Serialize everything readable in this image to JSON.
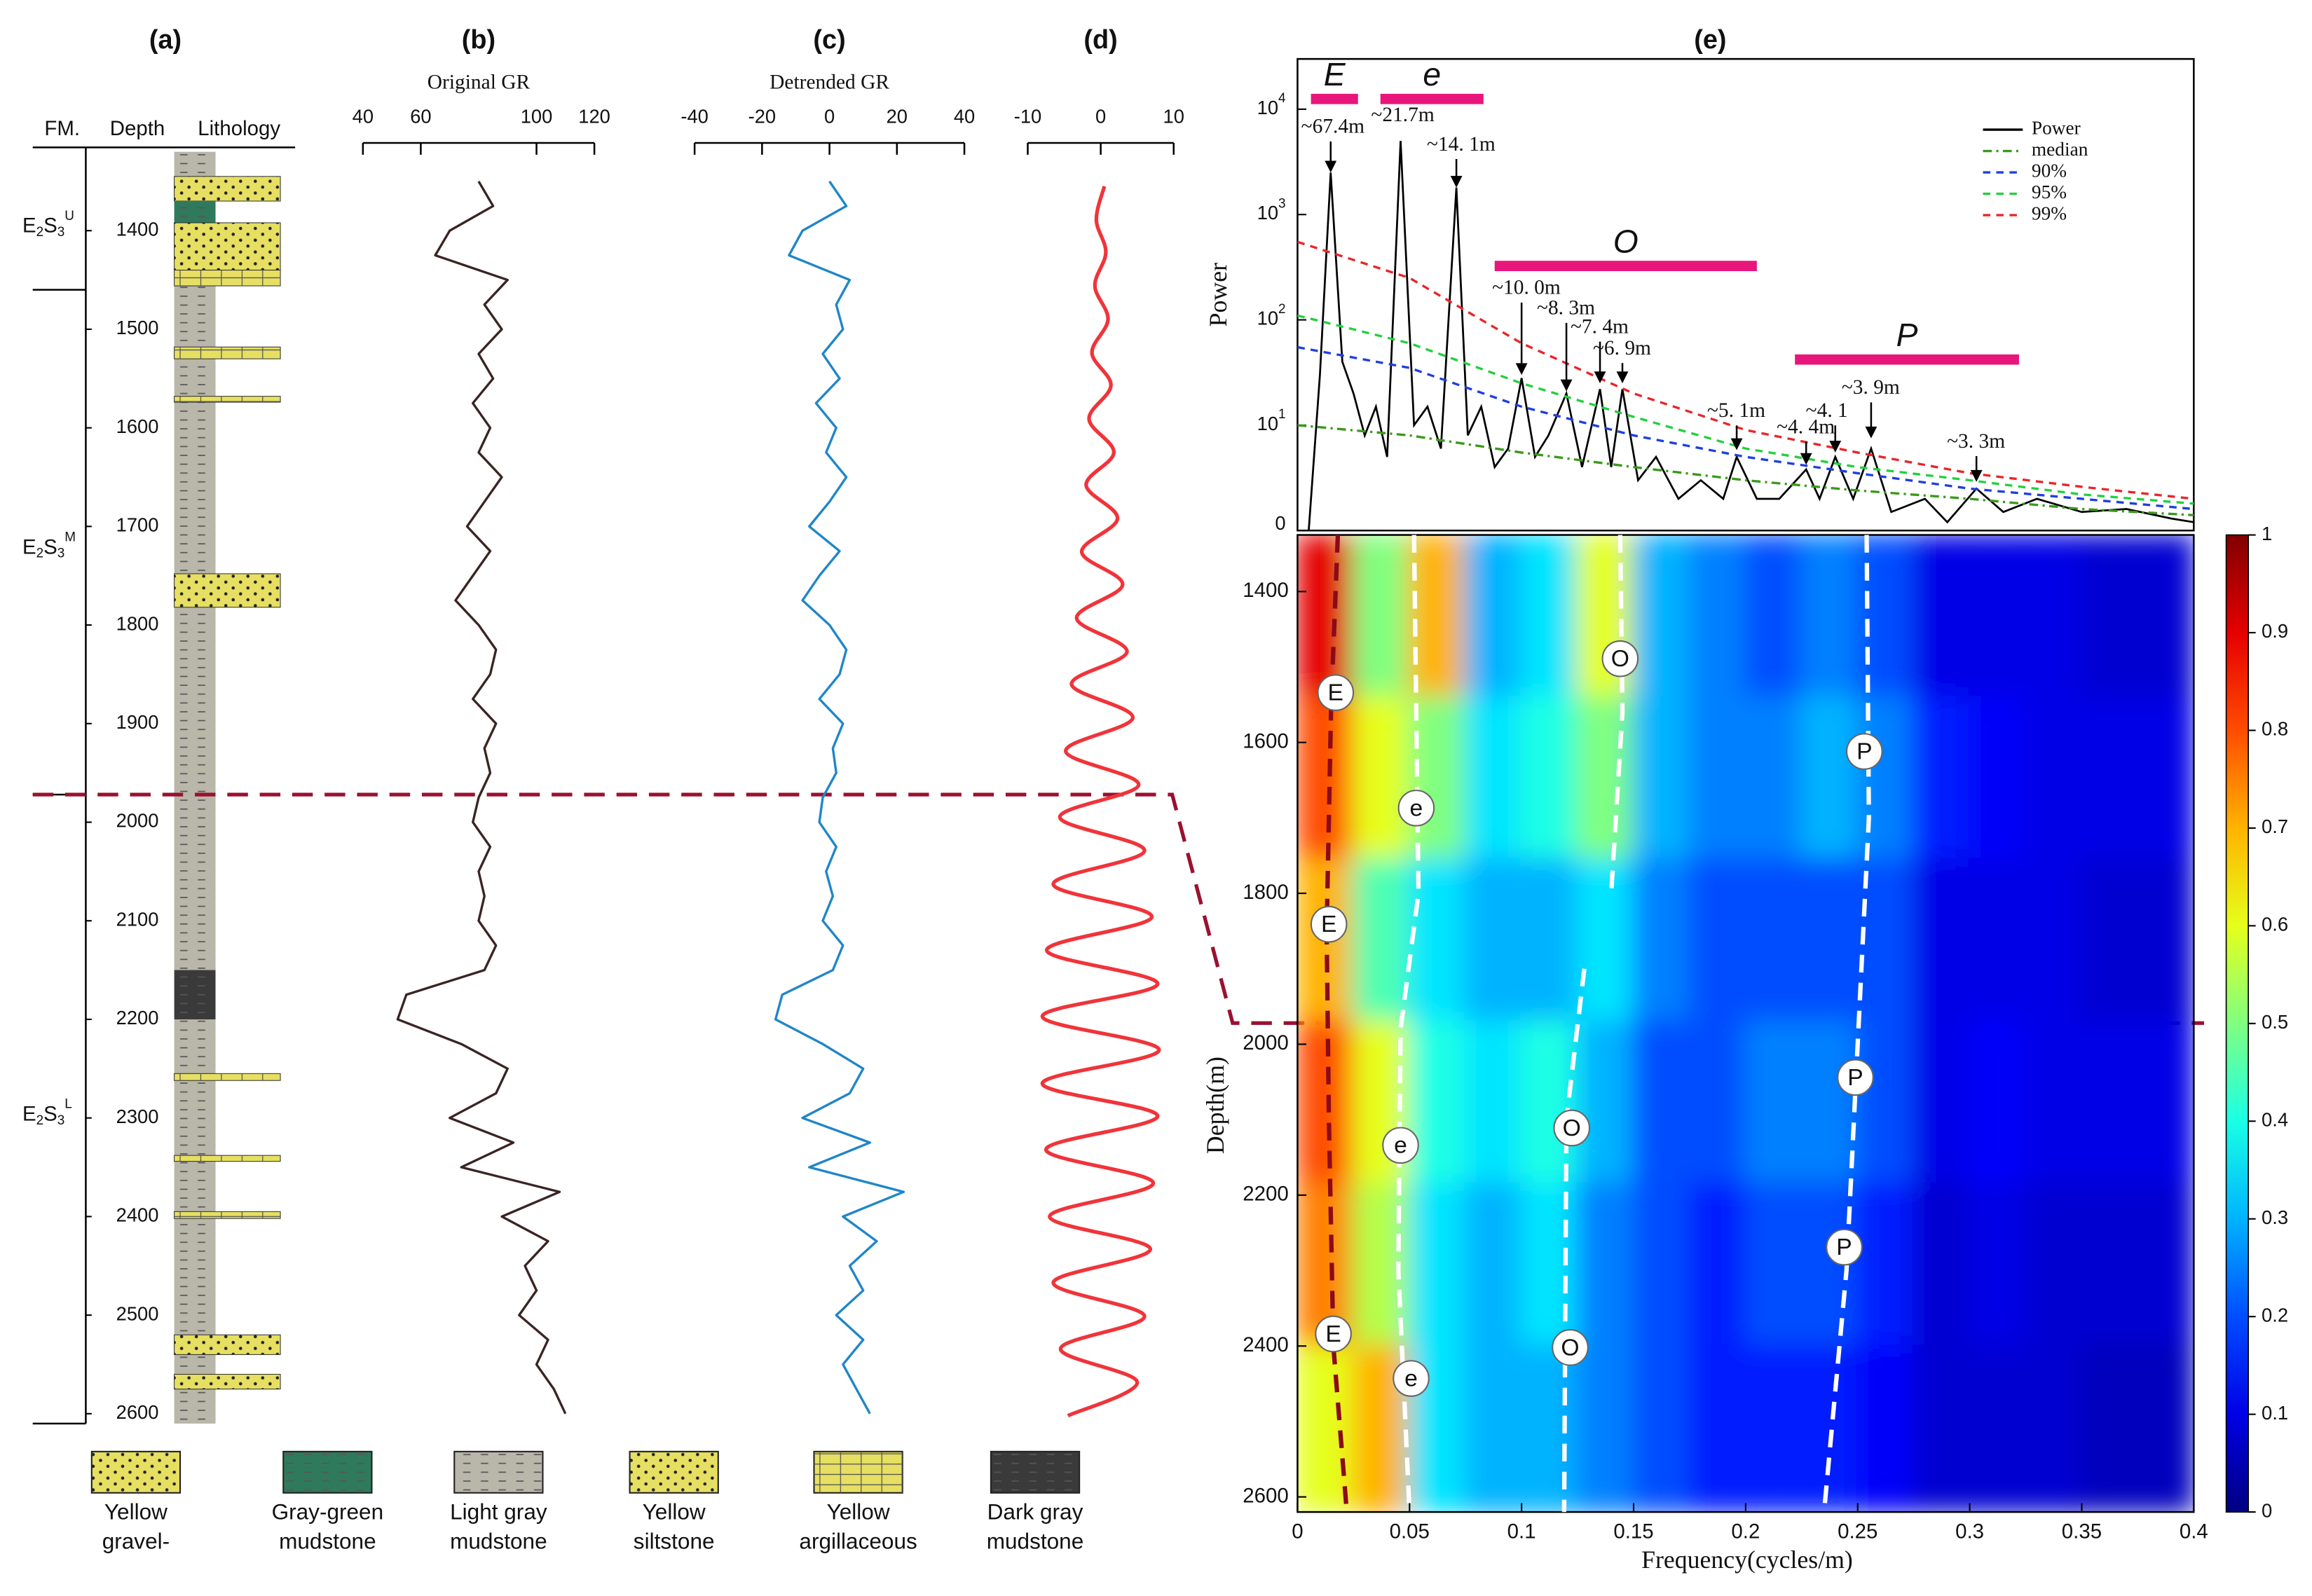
{
  "chart_data": [
    {
      "type": "lithology",
      "title": "(a)",
      "headers": [
        "FM.",
        "Depth",
        "Lithology"
      ],
      "ylim": [
        1320,
        2610
      ],
      "yticks": [
        1400,
        1500,
        1600,
        1700,
        1800,
        1900,
        2000,
        2100,
        2200,
        2300,
        2400,
        2500,
        2600
      ],
      "formations": [
        {
          "parts": [
            "E",
            "2",
            "S",
            "3",
            "U"
          ],
          "top": 1320,
          "bottom": 1460
        },
        {
          "parts": [
            "E",
            "2",
            "S",
            "3",
            "M"
          ],
          "top": 1460,
          "bottom": 1972
        },
        {
          "parts": [
            "E",
            "2",
            "S",
            "3",
            "L"
          ],
          "top": 1972,
          "bottom": 2610
        }
      ],
      "lithologies": [
        {
          "name": [
            "Yellow",
            "gravel-"
          ],
          "color": "#e6df62",
          "pattern": "dots"
        },
        {
          "name": [
            "Gray-green",
            "mudstone"
          ],
          "color": "#2f7a5c",
          "pattern": "dash"
        },
        {
          "name": [
            "Light gray",
            "mudstone"
          ],
          "color": "#b9b6aa",
          "pattern": "dash"
        },
        {
          "name": [
            "Yellow",
            "siltstone"
          ],
          "color": "#e6df62",
          "pattern": "dots"
        },
        {
          "name": [
            "Yellow",
            "argillaceous"
          ],
          "color": "#e6df62",
          "pattern": "grid"
        },
        {
          "name": [
            "Dark gray",
            "mudstone"
          ],
          "color": "#3a3a3a",
          "pattern": "dash"
        }
      ],
      "beds": [
        {
          "top": 1320,
          "bottom": 2610,
          "lithology": 2
        },
        {
          "top": 1345,
          "bottom": 1370,
          "lithology": 0
        },
        {
          "top": 1370,
          "bottom": 1392,
          "lithology": 1
        },
        {
          "top": 1392,
          "bottom": 1440,
          "lithology": 3
        },
        {
          "top": 1440,
          "bottom": 1456,
          "lithology": 4
        },
        {
          "top": 1518,
          "bottom": 1530,
          "lithology": 4
        },
        {
          "top": 1568,
          "bottom": 1574,
          "lithology": 4
        },
        {
          "top": 1748,
          "bottom": 1782,
          "lithology": 3
        },
        {
          "top": 2150,
          "bottom": 2200,
          "lithology": 5
        },
        {
          "top": 2255,
          "bottom": 2262,
          "lithology": 4
        },
        {
          "top": 2310,
          "bottom": 2332,
          "lithology": 2
        },
        {
          "top": 2338,
          "bottom": 2344,
          "lithology": 4
        },
        {
          "top": 2395,
          "bottom": 2402,
          "lithology": 4
        },
        {
          "top": 2520,
          "bottom": 2540,
          "lithology": 3
        },
        {
          "top": 2560,
          "bottom": 2575,
          "lithology": 3
        }
      ]
    },
    {
      "type": "log",
      "title": "(b)",
      "xlabel": "Original GR",
      "xlim": [
        40,
        120
      ],
      "xticks": [
        40,
        60,
        100,
        120
      ],
      "ylim": [
        1320,
        2610
      ],
      "color": "#3b2424",
      "depth": [
        1350,
        1375,
        1400,
        1425,
        1450,
        1475,
        1500,
        1525,
        1550,
        1575,
        1600,
        1625,
        1650,
        1675,
        1700,
        1725,
        1750,
        1775,
        1800,
        1825,
        1850,
        1875,
        1900,
        1925,
        1950,
        1975,
        2000,
        2025,
        2050,
        2075,
        2100,
        2125,
        2150,
        2175,
        2200,
        2225,
        2250,
        2275,
        2300,
        2325,
        2350,
        2375,
        2400,
        2425,
        2450,
        2475,
        2500,
        2525,
        2550,
        2575,
        2600
      ],
      "values": [
        80,
        85,
        70,
        65,
        90,
        82,
        88,
        80,
        85,
        78,
        84,
        80,
        88,
        82,
        76,
        84,
        78,
        72,
        80,
        86,
        84,
        78,
        86,
        82,
        84,
        80,
        78,
        84,
        80,
        82,
        80,
        86,
        82,
        55,
        52,
        74,
        90,
        86,
        70,
        92,
        74,
        108,
        88,
        104,
        96,
        100,
        94,
        104,
        100,
        106,
        110
      ]
    },
    {
      "type": "log",
      "title": "(c)",
      "xlabel": "Detrended GR",
      "xlim": [
        -40,
        40
      ],
      "xticks": [
        -40,
        -20,
        0,
        20,
        40
      ],
      "ylim": [
        1320,
        2610
      ],
      "color": "#1f86c8",
      "depth": [
        1350,
        1375,
        1400,
        1425,
        1450,
        1475,
        1500,
        1525,
        1550,
        1575,
        1600,
        1625,
        1650,
        1675,
        1700,
        1725,
        1750,
        1775,
        1800,
        1825,
        1850,
        1875,
        1900,
        1925,
        1950,
        1975,
        2000,
        2025,
        2050,
        2075,
        2100,
        2125,
        2150,
        2175,
        2200,
        2225,
        2250,
        2275,
        2300,
        2325,
        2350,
        2375,
        2400,
        2425,
        2450,
        2475,
        2500,
        2525,
        2550,
        2575,
        2600
      ],
      "values": [
        0,
        5,
        -8,
        -12,
        6,
        2,
        4,
        -2,
        3,
        -4,
        2,
        -1,
        5,
        0,
        -6,
        3,
        -3,
        -8,
        0,
        5,
        3,
        -3,
        4,
        1,
        2,
        -2,
        -3,
        2,
        -1,
        1,
        -2,
        4,
        1,
        -14,
        -16,
        -2,
        10,
        6,
        -8,
        12,
        -6,
        22,
        4,
        14,
        6,
        10,
        2,
        10,
        4,
        8,
        12
      ]
    },
    {
      "type": "log",
      "title": "(d)",
      "xlim": [
        -10,
        10
      ],
      "xticks": [
        -10,
        0,
        10
      ],
      "ylim": [
        1320,
        2610
      ],
      "color": "#f0343a",
      "smooth": true,
      "depth": [
        1355,
        1389,
        1422,
        1456,
        1490,
        1524,
        1557,
        1591,
        1625,
        1658,
        1692,
        1726,
        1759,
        1793,
        1827,
        1860,
        1894,
        1928,
        1962,
        1995,
        2029,
        2063,
        2096,
        2130,
        2164,
        2197,
        2231,
        2265,
        2298,
        2332,
        2366,
        2400,
        2433,
        2467,
        2501,
        2534,
        2568,
        2602
      ],
      "values": [
        0.5,
        -0.6,
        0.7,
        -0.8,
        1,
        -1.2,
        1.4,
        -1.6,
        1.8,
        -2,
        2.3,
        -2.6,
        3,
        -3.3,
        3.6,
        -4,
        4.4,
        -4.8,
        5.2,
        -5.6,
        6,
        -6.5,
        7,
        -7.4,
        7.8,
        -8,
        8,
        -8,
        7.8,
        -7.5,
        7.2,
        -7,
        6.8,
        -6.5,
        6,
        -5.5,
        5,
        -4.5
      ]
    },
    {
      "type": "spectrum",
      "title": "(e)",
      "ylabel": "Power",
      "log": true,
      "xlim": [
        0,
        0.4
      ],
      "ylim": [
        1,
        30000
      ],
      "yticks": [
        {
          "value": 10000,
          "label": "10",
          "exp": "4"
        },
        {
          "value": 1000,
          "label": "10",
          "exp": "3"
        },
        {
          "value": 100,
          "label": "10",
          "exp": "2"
        },
        {
          "value": 10,
          "label": "10",
          "exp": "1"
        },
        {
          "value": 1,
          "label": "0"
        }
      ],
      "legend": "upper right",
      "series": [
        {
          "name": "Power",
          "color": "#000000",
          "dash": "solid",
          "x": [
            0.005,
            0.01,
            0.0148,
            0.02,
            0.025,
            0.03,
            0.035,
            0.04,
            0.046,
            0.052,
            0.058,
            0.064,
            0.0709,
            0.076,
            0.082,
            0.088,
            0.094,
            0.1,
            0.106,
            0.112,
            0.12,
            0.127,
            0.135,
            0.14,
            0.145,
            0.152,
            0.16,
            0.17,
            0.18,
            0.19,
            0.196,
            0.205,
            0.215,
            0.227,
            0.233,
            0.24,
            0.248,
            0.256,
            0.265,
            0.28,
            0.29,
            0.303,
            0.315,
            0.33,
            0.35,
            0.37,
            0.39,
            0.4
          ],
          "values": [
            1,
            30,
            2500,
            40,
            20,
            8,
            15,
            5,
            5000,
            10,
            15,
            6,
            1800,
            8,
            15,
            4,
            6,
            28,
            5,
            8,
            20,
            4,
            22,
            4,
            22,
            3,
            5,
            2,
            3,
            2,
            5,
            2,
            2,
            3.8,
            2,
            5,
            2,
            6,
            1.5,
            2,
            1.2,
            2.5,
            1.5,
            2,
            1.5,
            1.6,
            1.3,
            1.2
          ]
        },
        {
          "name": "median",
          "color": "#3a9a1a",
          "dash": "dashdot",
          "x": [
            0,
            0.05,
            0.1,
            0.15,
            0.2,
            0.25,
            0.3,
            0.35,
            0.4
          ],
          "values": [
            10,
            8,
            5.5,
            4,
            3,
            2.4,
            2,
            1.6,
            1.4
          ]
        },
        {
          "name": "90%",
          "color": "#1f3fe0",
          "dash": "dash",
          "x": [
            0,
            0.05,
            0.1,
            0.15,
            0.2,
            0.25,
            0.3,
            0.35,
            0.4
          ],
          "values": [
            55,
            35,
            15,
            8,
            5,
            3.5,
            2.5,
            2,
            1.6
          ]
        },
        {
          "name": "95%",
          "color": "#22d040",
          "dash": "dash",
          "x": [
            0,
            0.05,
            0.1,
            0.15,
            0.2,
            0.25,
            0.3,
            0.35,
            0.4
          ],
          "values": [
            110,
            60,
            25,
            12,
            6,
            4,
            3,
            2.2,
            1.8
          ]
        },
        {
          "name": "99%",
          "color": "#e8262a",
          "dash": "dash",
          "x": [
            0,
            0.05,
            0.1,
            0.15,
            0.2,
            0.25,
            0.3,
            0.35,
            0.4
          ],
          "values": [
            550,
            250,
            60,
            20,
            9,
            5.5,
            3.5,
            2.6,
            2
          ]
        }
      ],
      "bands": [
        {
          "label": "E",
          "from": 0.006,
          "to": 0.027,
          "y": 12500
        },
        {
          "label": "e",
          "from": 0.037,
          "to": 0.083,
          "y": 12500
        },
        {
          "label": "O",
          "from": 0.088,
          "to": 0.205,
          "y": 325
        },
        {
          "label": "P",
          "from": 0.222,
          "to": 0.322,
          "y": 42
        }
      ],
      "band_color": "#e8157a",
      "annotations": [
        {
          "text": "~67.4m",
          "x": 0.0148,
          "y": 6600,
          "tip": 2500
        },
        {
          "text": "~21.7m",
          "x": 0.046,
          "y": 8500
        },
        {
          "text": "~14. 1m",
          "x": 0.0709,
          "y": 4500,
          "tip": 1800
        },
        {
          "text": "~10. 0m",
          "x": 0.1,
          "y": 195,
          "tip": 30
        },
        {
          "text": "~8. 3m",
          "x": 0.12,
          "y": 125,
          "tip": 21
        },
        {
          "text": "~7. 4m",
          "x": 0.135,
          "y": 83,
          "tip": 25
        },
        {
          "text": "~6. 9m",
          "x": 0.145,
          "y": 52,
          "tip": 25
        },
        {
          "text": "~5. 1m",
          "x": 0.196,
          "y": 13.3,
          "tip": 5.8
        },
        {
          "text": "~4. 4m",
          "x": 0.227,
          "y": 9.3,
          "tip": 4.2
        },
        {
          "text": "~4. 1",
          "x": 0.24,
          "y": 13.3,
          "tip": 5.5
        },
        {
          "text": "~3. 9m",
          "x": 0.256,
          "y": 22,
          "tip": 7.5
        },
        {
          "text": "~3. 3m",
          "x": 0.303,
          "y": 6.8,
          "tip": 2.9
        }
      ]
    },
    {
      "type": "heatmap",
      "xlabel": "Frequency(cycles/m)",
      "ylabel": "Depth(m)",
      "xlim": [
        0,
        0.4
      ],
      "ylim": [
        1325,
        2620
      ],
      "xticks": [
        0,
        0.05,
        0.1,
        0.15,
        0.2,
        0.25,
        0.3,
        0.35,
        0.4
      ],
      "yticks": [
        1400,
        1600,
        1800,
        2000,
        2200,
        2400,
        2600
      ],
      "xbins": [
        0,
        0.025,
        0.05,
        0.075,
        0.1,
        0.125,
        0.15,
        0.175,
        0.2,
        0.225,
        0.25,
        0.275,
        0.3,
        0.325,
        0.35,
        0.375,
        0.4
      ],
      "ybins": [
        1325,
        1540,
        1755,
        1970,
        2185,
        2400,
        2620
      ],
      "z": [
        [
          0.9,
          0.5,
          0.7,
          0.3,
          0.35,
          0.6,
          0.3,
          0.25,
          0.2,
          0.25,
          0.2,
          0.1,
          0.1,
          0.1,
          0.08,
          0.08
        ],
        [
          0.8,
          0.6,
          0.5,
          0.35,
          0.4,
          0.5,
          0.3,
          0.25,
          0.25,
          0.3,
          0.25,
          0.15,
          0.12,
          0.1,
          0.1,
          0.1
        ],
        [
          0.7,
          0.45,
          0.35,
          0.3,
          0.3,
          0.35,
          0.25,
          0.2,
          0.2,
          0.2,
          0.2,
          0.1,
          0.1,
          0.1,
          0.08,
          0.08
        ],
        [
          0.8,
          0.6,
          0.4,
          0.35,
          0.4,
          0.3,
          0.2,
          0.2,
          0.25,
          0.25,
          0.2,
          0.1,
          0.12,
          0.1,
          0.1,
          0.1
        ],
        [
          0.75,
          0.55,
          0.35,
          0.3,
          0.35,
          0.25,
          0.2,
          0.15,
          0.2,
          0.2,
          0.15,
          0.08,
          0.1,
          0.08,
          0.08,
          0.08
        ],
        [
          0.6,
          0.7,
          0.35,
          0.3,
          0.3,
          0.25,
          0.2,
          0.15,
          0.15,
          0.15,
          0.12,
          0.08,
          0.08,
          0.08,
          0.06,
          0.06
        ]
      ],
      "colorbar": {
        "lim": [
          0,
          1
        ],
        "ticks": [
          0,
          0.1,
          0.2,
          0.3,
          0.4,
          0.5,
          0.6,
          0.7,
          0.8,
          0.9,
          1
        ]
      },
      "ridges": [
        {
          "label": "E",
          "color": "#8b0a1a",
          "f": [
            0.018,
            0.015,
            0.013,
            0.014,
            0.016,
            0.022
          ],
          "depth": [
            1325,
            1550,
            1850,
            2100,
            2400,
            2620
          ],
          "label_f": [
            0.017,
            0.014,
            0.016
          ],
          "label_depth": [
            1534,
            1841,
            2384
          ]
        },
        {
          "label": "e",
          "color": "#ffffff",
          "f": [
            0.052,
            0.054,
            0.046,
            0.045,
            0.05
          ],
          "depth": [
            1325,
            1800,
            1980,
            2300,
            2620
          ],
          "label_f": [
            0.053,
            0.046,
            0.0507
          ],
          "label_depth": [
            1687,
            2134,
            2443
          ]
        },
        {
          "label": "O",
          "color": "#ffffff",
          "f": [
            0.144,
            0.145,
            0.14,
            null,
            0.128,
            0.12,
            0.119
          ],
          "depth": [
            1325,
            1560,
            1800,
            null,
            1900,
            2100,
            2620
          ],
          "label_f": [
            0.144,
            0.1224,
            0.1217
          ],
          "label_depth": [
            1489,
            2111,
            2402
          ]
        },
        {
          "label": "P",
          "color": "#ffffff",
          "f": [
            0.254,
            0.255,
            0.25,
            0.245,
            0.235
          ],
          "depth": [
            1325,
            1700,
            2000,
            2300,
            2620
          ],
          "label_f": [
            0.253,
            0.249,
            0.244
          ],
          "label_depth": [
            1612,
            2044,
            2269
          ]
        }
      ]
    }
  ]
}
